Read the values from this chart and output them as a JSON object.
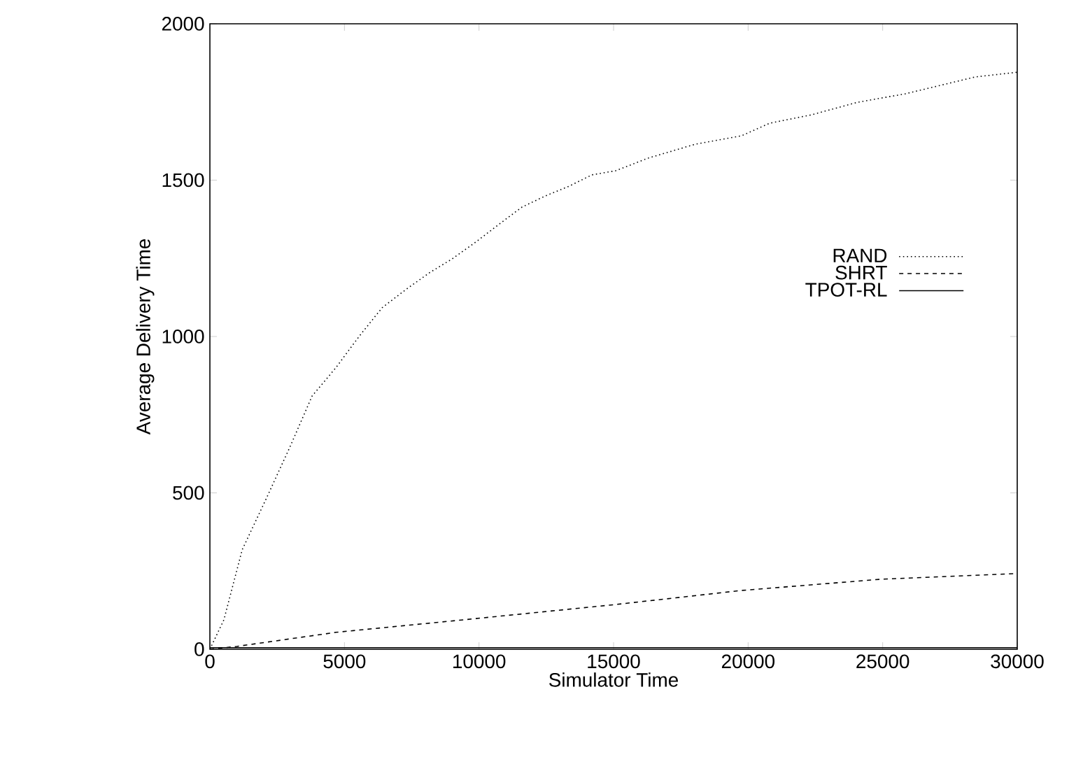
{
  "chart_data": {
    "type": "line",
    "xlabel": "Simulator Time",
    "ylabel": "Average Delivery Time",
    "xlim": [
      0,
      30000
    ],
    "ylim": [
      0,
      2000
    ],
    "xticks": [
      0,
      5000,
      10000,
      15000,
      20000,
      25000,
      30000
    ],
    "yticks": [
      0,
      500,
      1000,
      1500,
      2000
    ],
    "legend": "right",
    "grid": false,
    "marker": "none",
    "series": [
      {
        "name": "RAND",
        "color": "#000000",
        "line_style": "dotted",
        "x": [
          0,
          520,
          1200,
          2080,
          2960,
          3800,
          4680,
          5560,
          6400,
          7280,
          8160,
          9000,
          9880,
          10760,
          11600,
          12480,
          13360,
          14200,
          15080,
          16270,
          18040,
          19760,
          20800,
          22360,
          24070,
          25840,
          28440,
          30000
        ],
        "values": [
          0,
          94,
          318,
          479,
          644,
          810,
          900,
          1002,
          1092,
          1150,
          1204,
          1248,
          1302,
          1360,
          1414,
          1450,
          1481,
          1517,
          1530,
          1570,
          1615,
          1642,
          1682,
          1709,
          1749,
          1776,
          1830,
          1845
        ]
      },
      {
        "name": "SHRT",
        "color": "#000000",
        "line_style": "dashed",
        "x": [
          0,
          1000,
          4680,
          9880,
          15080,
          19760,
          24960,
          30000
        ],
        "values": [
          0,
          9,
          54,
          98,
          143,
          188,
          224,
          242
        ]
      },
      {
        "name": "TPOT-RL",
        "color": "#000000",
        "line_style": "solid",
        "x": [
          0,
          30000
        ],
        "values": [
          5,
          5
        ]
      }
    ]
  }
}
